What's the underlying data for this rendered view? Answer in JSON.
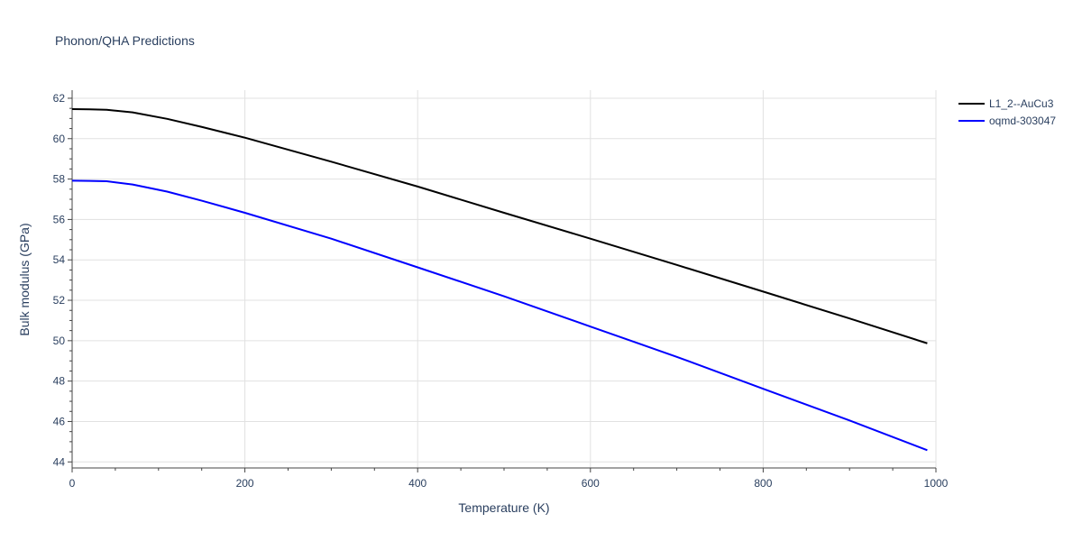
{
  "chart_data": {
    "type": "line",
    "title": "Phonon/QHA Predictions",
    "xlabel": "Temperature (K)",
    "ylabel": "Bulk modulus (GPa)",
    "xlim": [
      0,
      1000
    ],
    "ylim": [
      43.7,
      62.4
    ],
    "xticks": [
      0,
      200,
      400,
      600,
      800,
      1000
    ],
    "yticks": [
      44,
      46,
      48,
      50,
      52,
      54,
      56,
      58,
      60,
      62
    ],
    "grid": true,
    "legend_position": "top-right",
    "series": [
      {
        "name": "L1_2--AuCu3",
        "color": "#000000",
        "x": [
          0,
          20,
          40,
          70,
          110,
          150,
          200,
          300,
          400,
          500,
          600,
          700,
          800,
          900,
          990
        ],
        "y": [
          61.46,
          61.45,
          61.43,
          61.3,
          60.98,
          60.58,
          60.05,
          58.86,
          57.63,
          56.33,
          55.05,
          53.75,
          52.43,
          51.1,
          49.87
        ]
      },
      {
        "name": "oqmd-303047",
        "color": "#0000ff",
        "x": [
          0,
          20,
          40,
          70,
          110,
          150,
          200,
          300,
          400,
          500,
          600,
          700,
          800,
          900,
          990
        ],
        "y": [
          57.92,
          57.91,
          57.89,
          57.73,
          57.38,
          56.93,
          56.33,
          55.05,
          53.63,
          52.2,
          50.7,
          49.2,
          47.62,
          46.05,
          44.58
        ]
      }
    ]
  }
}
